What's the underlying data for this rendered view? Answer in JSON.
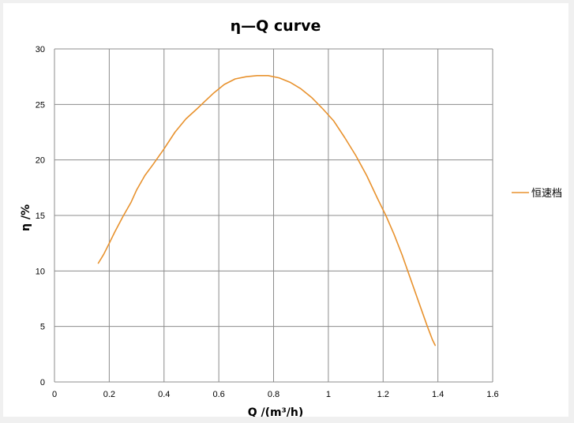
{
  "chart_data": {
    "type": "line",
    "title": "η—Q curve",
    "xlabel": "Q /(m³/h)",
    "ylabel": "η /%",
    "xlim": [
      0,
      1.6
    ],
    "ylim": [
      0,
      30
    ],
    "x_ticks": [
      0,
      0.2,
      0.4,
      0.6,
      0.8,
      1,
      1.2,
      1.4,
      1.6
    ],
    "y_ticks": [
      0,
      5,
      10,
      15,
      20,
      25,
      30
    ],
    "grid": true,
    "legend_position": "right",
    "series": [
      {
        "name": "恒速档",
        "color": "#e8922e",
        "points": [
          [
            0.16,
            10.7
          ],
          [
            0.18,
            11.5
          ],
          [
            0.2,
            12.5
          ],
          [
            0.22,
            13.5
          ],
          [
            0.25,
            14.9
          ],
          [
            0.28,
            16.2
          ],
          [
            0.3,
            17.3
          ],
          [
            0.33,
            18.6
          ],
          [
            0.36,
            19.6
          ],
          [
            0.4,
            21.0
          ],
          [
            0.44,
            22.5
          ],
          [
            0.48,
            23.7
          ],
          [
            0.52,
            24.6
          ],
          [
            0.55,
            25.3
          ],
          [
            0.58,
            26.0
          ],
          [
            0.62,
            26.8
          ],
          [
            0.66,
            27.3
          ],
          [
            0.7,
            27.5
          ],
          [
            0.74,
            27.6
          ],
          [
            0.78,
            27.6
          ],
          [
            0.82,
            27.4
          ],
          [
            0.86,
            27.0
          ],
          [
            0.9,
            26.4
          ],
          [
            0.94,
            25.6
          ],
          [
            0.98,
            24.6
          ],
          [
            1.02,
            23.5
          ],
          [
            1.06,
            22.0
          ],
          [
            1.1,
            20.4
          ],
          [
            1.14,
            18.6
          ],
          [
            1.18,
            16.5
          ],
          [
            1.21,
            15.0
          ],
          [
            1.24,
            13.3
          ],
          [
            1.27,
            11.4
          ],
          [
            1.3,
            9.3
          ],
          [
            1.33,
            7.2
          ],
          [
            1.36,
            5.1
          ],
          [
            1.38,
            3.8
          ],
          [
            1.39,
            3.3
          ]
        ]
      }
    ]
  }
}
